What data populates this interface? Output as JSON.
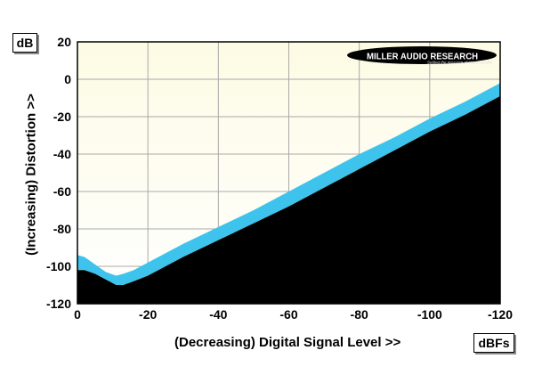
{
  "chart_data": {
    "type": "area",
    "title": "",
    "xlabel": "(Decreasing) Digital Signal Level >>",
    "ylabel": "(Increasing) Distortion >>",
    "x_unit": "dBFs",
    "y_unit": "dB",
    "xlim": [
      0,
      -120
    ],
    "ylim": [
      -120,
      20
    ],
    "x_ticks": [
      0,
      -20,
      -40,
      -60,
      -80,
      -100,
      -120
    ],
    "y_ticks": [
      20,
      0,
      -20,
      -40,
      -60,
      -80,
      -100,
      -120
    ],
    "grid": true,
    "colors": {
      "background_top": "#fdfbe4",
      "background_bottom": "#ffffff",
      "band": "#3ec4ec",
      "fill": "#000000",
      "grid": "#a9a9a9"
    },
    "series": [
      {
        "x": [
          0,
          -2,
          -5,
          -8,
          -11,
          -13,
          -16,
          -20,
          -25,
          -30,
          -40,
          -50,
          -60,
          -70,
          -80,
          -90,
          -100,
          -110,
          -120
        ],
        "upper": [
          -94,
          -95,
          -99,
          -103,
          -105,
          -104,
          -102,
          -98,
          -93,
          -88,
          -79,
          -70,
          -60,
          -50,
          -40,
          -31,
          -21,
          -12,
          -2
        ],
        "lower": [
          -102,
          -102,
          -104,
          -107,
          -110,
          -110,
          -108,
          -105,
          -100,
          -95,
          -86,
          -77,
          -68,
          -58,
          -48,
          -38,
          -28,
          -19,
          -9
        ]
      }
    ]
  },
  "logo": {
    "main": "MILLER AUDIO RESEARCH",
    "tagline": "Setting the measure of sound quality"
  }
}
